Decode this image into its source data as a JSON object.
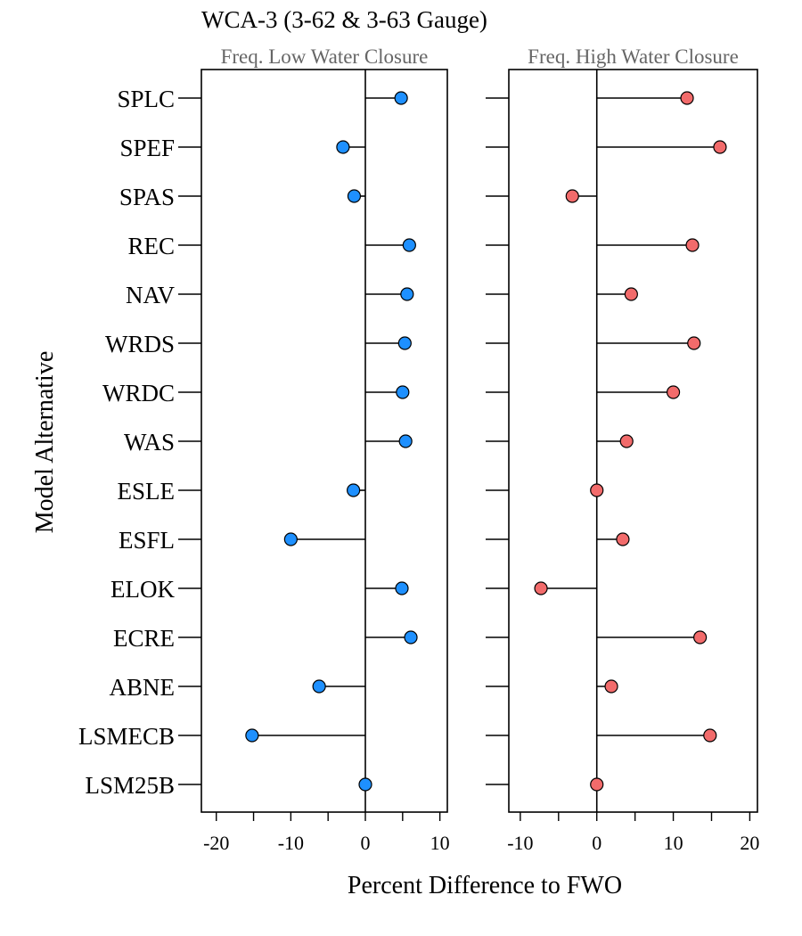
{
  "chart_data": {
    "type": "lollipop",
    "title": "WCA-3 (3-62 & 3-63 Gauge)",
    "xlabel": "Percent Difference to FWO",
    "ylabel": "Model Alternative",
    "categories": [
      "SPLC",
      "SPEF",
      "SPAS",
      "REC",
      "NAV",
      "WRDS",
      "WRDC",
      "WAS",
      "ESLE",
      "ESFL",
      "ELOK",
      "ECRE",
      "ABNE",
      "LSMECB",
      "LSM25B"
    ],
    "panels": [
      {
        "title": "Freq. Low Water Closure",
        "color": "#1E90FF",
        "xlim": [
          -22,
          11
        ],
        "xticks": [
          -20,
          -10,
          0,
          10
        ],
        "values": [
          4.8,
          -3.0,
          -1.5,
          5.9,
          5.6,
          5.3,
          5.0,
          5.4,
          -1.6,
          -10.0,
          4.9,
          6.1,
          -6.2,
          -15.2,
          0.0
        ]
      },
      {
        "title": "Freq. High Water Closure",
        "color": "#F26B6B",
        "xlim": [
          -11.5,
          21
        ],
        "xticks": [
          -10,
          0,
          10,
          20
        ],
        "values": [
          11.8,
          16.1,
          -3.2,
          12.5,
          4.5,
          12.7,
          10.0,
          3.9,
          0.0,
          3.4,
          -7.3,
          13.5,
          1.9,
          14.8,
          0.0
        ]
      }
    ]
  }
}
